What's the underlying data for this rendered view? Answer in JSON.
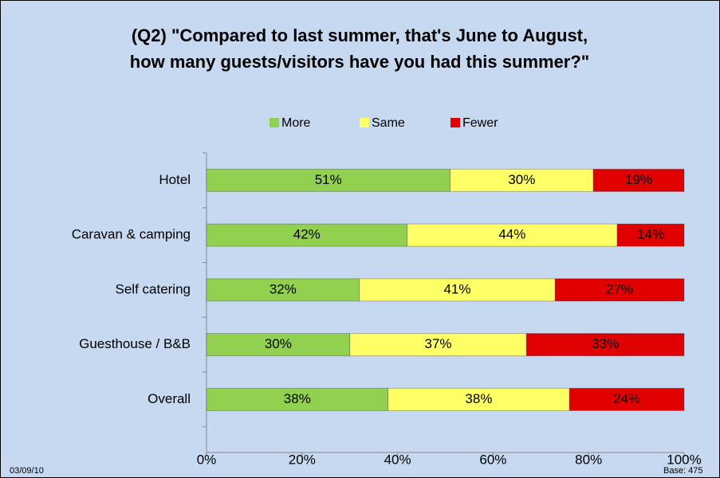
{
  "chart_data": {
    "type": "stacked-bar-horizontal",
    "title": [
      "(Q2) \"Compared to last summer, that's June to August,",
      "how many guests/visitors have you had this summer?\""
    ],
    "categories": [
      "Hotel",
      "Caravan & camping",
      "Self catering",
      "Guesthouse / B&B",
      "Overall"
    ],
    "series": [
      {
        "name": "More",
        "color": "#92d050",
        "values": [
          51,
          42,
          32,
          30,
          38
        ],
        "value_labels": [
          "51%",
          "42%",
          "32%",
          "30%",
          "38%"
        ]
      },
      {
        "name": "Same",
        "color": "#ffff66",
        "values": [
          30,
          44,
          41,
          37,
          38
        ],
        "value_labels": [
          "30%",
          "44%",
          "41%",
          "37%",
          "38%"
        ]
      },
      {
        "name": "Fewer",
        "color": "#e00000",
        "values": [
          19,
          14,
          27,
          33,
          24
        ],
        "value_labels": [
          "19%",
          "14%",
          "27%",
          "33%",
          "24%"
        ]
      }
    ],
    "xlim": [
      0,
      100
    ],
    "xticks": [
      {
        "value": 0,
        "label": "0%"
      },
      {
        "value": 20,
        "label": "20%"
      },
      {
        "value": 40,
        "label": "40%"
      },
      {
        "value": 60,
        "label": "60%"
      },
      {
        "value": 80,
        "label": "80%"
      },
      {
        "value": 100,
        "label": "100%"
      }
    ],
    "legend": "top",
    "annotations": [
      "03/09/10",
      "Base: 475"
    ]
  }
}
